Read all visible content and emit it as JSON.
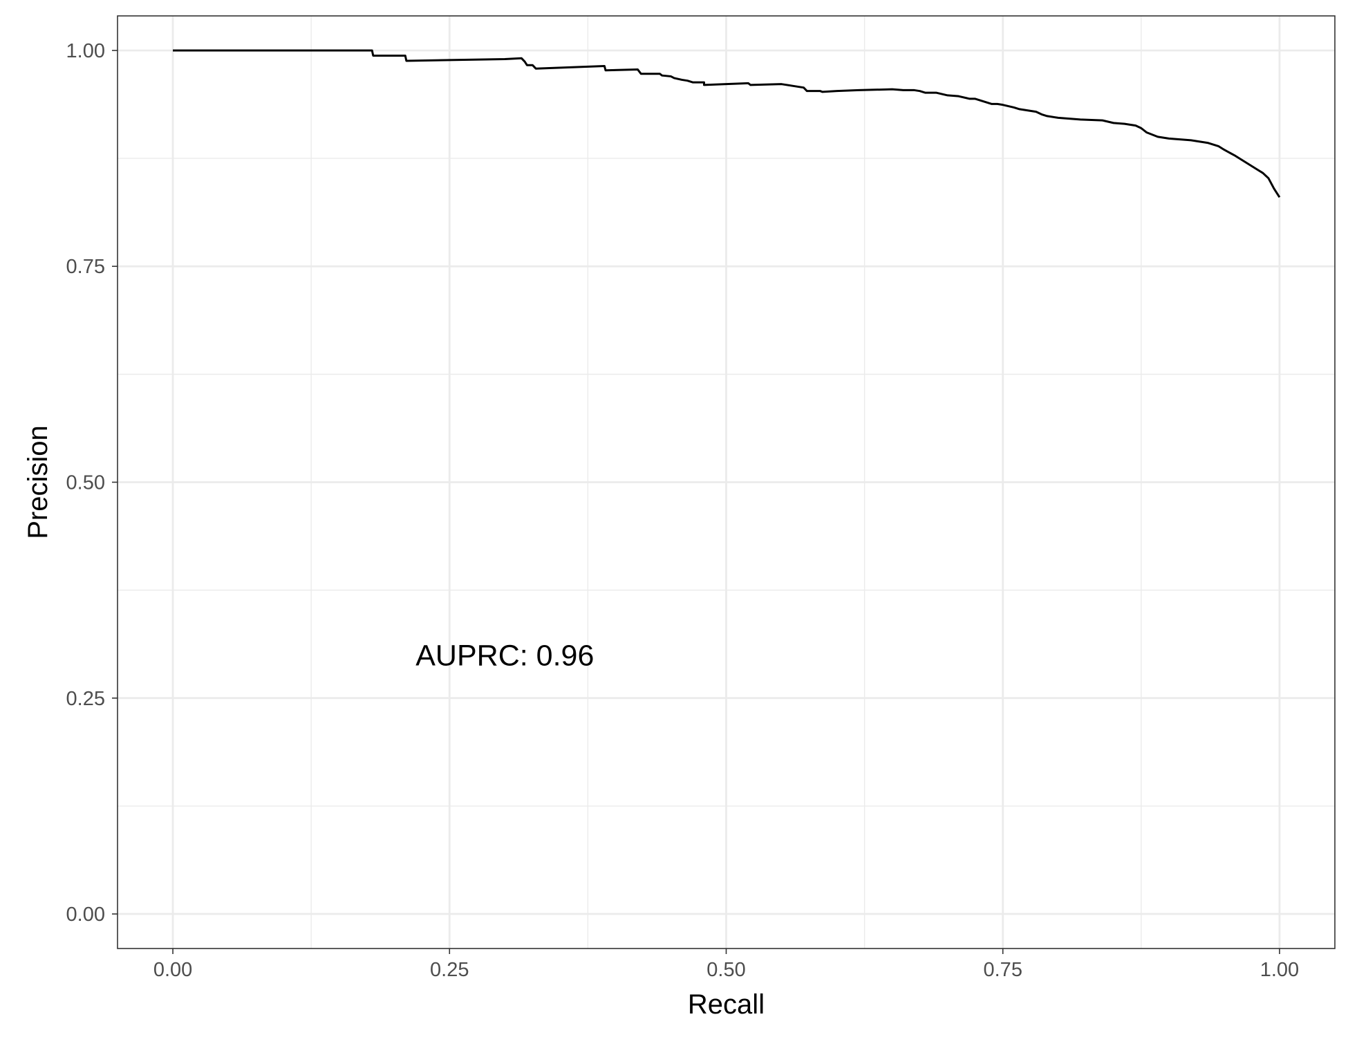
{
  "chart_data": {
    "type": "line",
    "title": "",
    "xlabel": "Recall",
    "ylabel": "Precision",
    "xlim": [
      -0.05,
      1.05
    ],
    "ylim": [
      -0.04,
      1.04
    ],
    "x_ticks": [
      0.0,
      0.25,
      0.5,
      0.75,
      1.0
    ],
    "x_tick_labels": [
      "0.00",
      "0.25",
      "0.50",
      "0.75",
      "1.00"
    ],
    "y_ticks": [
      0.0,
      0.25,
      0.5,
      0.75,
      1.0
    ],
    "y_tick_labels": [
      "0.00",
      "0.25",
      "0.50",
      "0.75",
      "1.00"
    ],
    "grid": true,
    "theme": "bw",
    "line_color": "#000000",
    "annotation": {
      "text": "AUPRC: 0.96",
      "x": 0.3,
      "y": 0.3
    },
    "series": [
      {
        "x": [
          0.0,
          0.18,
          0.181,
          0.21,
          0.211,
          0.3,
          0.315,
          0.318,
          0.32,
          0.325,
          0.328,
          0.39,
          0.391,
          0.42,
          0.423,
          0.425,
          0.44,
          0.442,
          0.45,
          0.453,
          0.46,
          0.465,
          0.47,
          0.48,
          0.48,
          0.5,
          0.52,
          0.522,
          0.55,
          0.56,
          0.57,
          0.573,
          0.585,
          0.587,
          0.6,
          0.62,
          0.65,
          0.66,
          0.67,
          0.675,
          0.68,
          0.69,
          0.7,
          0.71,
          0.72,
          0.725,
          0.73,
          0.735,
          0.74,
          0.745,
          0.75,
          0.76,
          0.765,
          0.77,
          0.78,
          0.785,
          0.79,
          0.8,
          0.81,
          0.82,
          0.84,
          0.85,
          0.86,
          0.87,
          0.875,
          0.88,
          0.89,
          0.9,
          0.91,
          0.92,
          0.925,
          0.93,
          0.935,
          0.94,
          0.945,
          0.95,
          0.96,
          0.965,
          0.97,
          0.975,
          0.98,
          0.985,
          0.99,
          0.995,
          1.0
        ],
        "y": [
          1.0,
          1.0,
          0.994,
          0.994,
          0.988,
          0.99,
          0.991,
          0.987,
          0.983,
          0.983,
          0.979,
          0.982,
          0.977,
          0.978,
          0.973,
          0.973,
          0.973,
          0.971,
          0.97,
          0.968,
          0.966,
          0.965,
          0.963,
          0.963,
          0.96,
          0.961,
          0.962,
          0.96,
          0.961,
          0.959,
          0.957,
          0.953,
          0.953,
          0.952,
          0.953,
          0.954,
          0.955,
          0.954,
          0.954,
          0.953,
          0.951,
          0.951,
          0.948,
          0.947,
          0.944,
          0.944,
          0.942,
          0.94,
          0.938,
          0.938,
          0.937,
          0.934,
          0.932,
          0.931,
          0.929,
          0.926,
          0.924,
          0.922,
          0.921,
          0.92,
          0.919,
          0.916,
          0.915,
          0.913,
          0.91,
          0.905,
          0.9,
          0.898,
          0.897,
          0.896,
          0.895,
          0.894,
          0.893,
          0.891,
          0.889,
          0.885,
          0.878,
          0.874,
          0.87,
          0.866,
          0.862,
          0.858,
          0.852,
          0.84,
          0.83
        ]
      }
    ]
  }
}
